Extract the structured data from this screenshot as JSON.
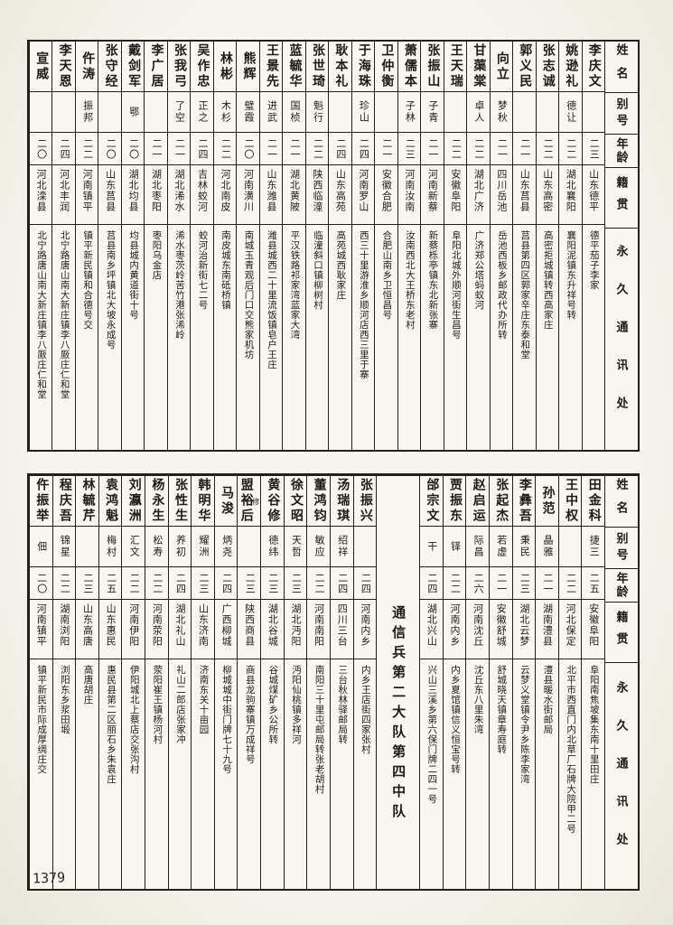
{
  "colors": {
    "paper": "#f8f6ef",
    "ink": "#1e1b18",
    "line": "#23201c"
  },
  "page": {
    "number": "1379"
  },
  "labels": {
    "name": "姓名",
    "alias": "别号",
    "age": "年龄",
    "native": "籍贯",
    "address": "永久通讯处"
  },
  "sections": {
    "top": {
      "persons": [
        {
          "name": "李庆文",
          "alias": "",
          "age": "二三",
          "native": "山东德平",
          "address": "德平茄子李家"
        },
        {
          "name": "姚逊礼",
          "alias": "德让",
          "age": "二二",
          "native": "湖北襄阳",
          "address": "襄阳泥镇东升祥号转"
        },
        {
          "name": "张志诚",
          "alias": "",
          "age": "二二",
          "native": "山东高密",
          "address": "高密拒城镇转西高家庄"
        },
        {
          "name": "郭义民",
          "alias": "",
          "age": "二一",
          "native": "山东莒县",
          "address": "莒县第四区郭家辛庄东泰和堂"
        },
        {
          "name": "向立",
          "alias": "梦秋",
          "age": "二一",
          "native": "四川岳池",
          "address": "岳池西板乡邮政代办所转"
        },
        {
          "name": "甘蕖棠",
          "alias": "卓人",
          "age": "二二",
          "native": "湖北广济",
          "address": "广济郑公塔蚂蚁河"
        },
        {
          "name": "王天瑞",
          "alias": "",
          "age": "二二",
          "native": "安徽阜阳",
          "address": "阜阳北城外顺河街生昌号"
        },
        {
          "name": "张振山",
          "alias": "子青",
          "age": "二一",
          "native": "河南新蔡",
          "address": "新蔡栎亭镇东北新张寨"
        },
        {
          "name": "萧儒本",
          "alias": "子林",
          "age": "二三",
          "native": "河南汝南",
          "address": "汝南西北大王桥东老村"
        },
        {
          "name": "卫仲衡",
          "alias": "",
          "age": "二一",
          "native": "安徽合肥",
          "address": "合肥山南乡卫恒昌号"
        },
        {
          "name": "于海珠",
          "alias": "珍山",
          "age": "二四",
          "native": "河南罗山",
          "address": "西三十里游淮乡顺河店西三里于寨"
        },
        {
          "name": "耿本礼",
          "alias": "",
          "age": "二四",
          "native": "山东高苑",
          "address": "高苑城西耿家庄"
        },
        {
          "name": "张世琦",
          "alias": "魁行",
          "age": "二二",
          "native": "陕西临潼",
          "address": "临潼斜口镇柳树村"
        },
        {
          "name": "蓝毓华",
          "alias": "国桢",
          "age": "二一",
          "native": "湖北黄陂",
          "address": "平汉铁路祁家湾蓝家大湾"
        },
        {
          "name": "王景先",
          "alias": "进武",
          "age": "二一",
          "native": "山东潍县",
          "address": "潍县城西二十里流饭镇皂户王庄"
        },
        {
          "name": "熊辉",
          "alias": "璧霞",
          "age": "二〇",
          "native": "河南潢川",
          "address": "南城玉青观后门口交熊家机坊"
        },
        {
          "name": "林彬",
          "alias": "木杉",
          "age": "二二",
          "native": "河北南皮",
          "address": "南皮城东南砥桥镇"
        },
        {
          "name": "吴作忠",
          "alias": "正之",
          "age": "二四",
          "native": "吉林蛟河",
          "address": "蛟河治新街七二号"
        },
        {
          "name": "张我弓",
          "alias": "了空",
          "age": "二一",
          "native": "湖北浠水",
          "address": "浠水枣茨岭苦竹港张浠岭"
        },
        {
          "name": "李广居",
          "alias": "",
          "age": "二一",
          "native": "湖北枣阳",
          "address": "枣阳乌金店"
        },
        {
          "name": "戴剑军",
          "alias": "鄂",
          "age": "二〇",
          "native": "湖北均县",
          "address": "均县城内黄道街十号"
        },
        {
          "name": "张守经",
          "alias": "",
          "age": "二〇",
          "native": "山东莒县",
          "address": "莒县南乡坪镇北大坡永成号"
        },
        {
          "name": "仵涛",
          "alias": "振邦",
          "age": "二二",
          "native": "河南镇平",
          "address": "镇平新民镇和合德号交"
        },
        {
          "name": "李天恩",
          "alias": "",
          "age": "二四",
          "native": "河北丰润",
          "address": "北宁路唐山南大新庄镇李八厫庄仁和堂"
        },
        {
          "name": "宣威",
          "alias": "",
          "age": "二〇",
          "native": "河北滦县",
          "address": "北宁路唐山南大新庄镇李八厫庄仁和堂"
        }
      ]
    },
    "bottom": {
      "unit_label": "通信兵第二大队第四中队",
      "persons_right": [
        {
          "name": "田金科",
          "alias": "捷三",
          "age": "二五",
          "native": "安徽阜阳",
          "address": "阜阳南焦坡集东南十里田庄"
        },
        {
          "name": "王中权",
          "alias": "",
          "age": "二二",
          "native": "河北保定",
          "address": "北平市西直门内北草厂石牌大院甲二号"
        },
        {
          "name": "孙范",
          "alias": "晶雅",
          "age": "二一",
          "native": "湖南澧县",
          "address": "澧县暖水街邮局"
        },
        {
          "name": "李彝吾",
          "alias": "秉民",
          "age": "二三",
          "native": "湖北云梦",
          "address": "云梦义堂镇令尹乡陈李家湾"
        },
        {
          "name": "张起杰",
          "alias": "若虚",
          "age": "二一",
          "native": "安徽舒城",
          "address": "舒城晓天镇章寿庭转"
        },
        {
          "name": "赵启运",
          "alias": "际昌",
          "age": "二六",
          "native": "河南沈丘",
          "address": "沈丘东八里朱湾"
        },
        {
          "name": "贾振东",
          "alias": "铎",
          "age": "二二",
          "native": "河南内乡",
          "address": "内乡夏馆镇信义恒宝号转"
        },
        {
          "name": "邰宗文",
          "alias": "干",
          "age": "二四",
          "native": "湖北兴山",
          "address": "兴山三溪乡第六保门牌二四一号"
        }
      ],
      "persons_left": [
        {
          "name": "张振兴",
          "alias": "",
          "age": "二四",
          "native": "河南内乡",
          "address": "内乡王店街四家张村"
        },
        {
          "name": "汤瑞琪",
          "alias": "绍祥",
          "age": "二四",
          "native": "四川三台",
          "address": "三台秋林驿邮局转"
        },
        {
          "name": "董鸿钧",
          "alias": "敏应",
          "age": "二二",
          "native": "河南南阳",
          "address": "南阳三十里屯邮局转张老胡村"
        },
        {
          "name": "徐文昭",
          "alias": "天哲",
          "age": "二三",
          "native": "湖北沔阳",
          "address": "沔阳仙桃镇多祥河"
        },
        {
          "name": "黄谷修",
          "alias": "德纬",
          "age": "二三",
          "native": "湖北谷城",
          "address": "谷城煤矿乡公所转"
        },
        {
          "name": "盟裕后",
          "name_note": "修",
          "alias": "",
          "age": "二三",
          "native": "陕西商县",
          "address": "商县龙驹寨镇万成祥号"
        },
        {
          "name": "马浚",
          "alias": "炳尧",
          "age": "二四",
          "native": "广西柳城",
          "address": "柳城城中街门牌七十九号"
        },
        {
          "name": "韩明华",
          "alias": "耀洲",
          "age": "二三",
          "native": "山东济南",
          "address": "济南东关十亩园"
        },
        {
          "name": "张性生",
          "alias": "养初",
          "age": "二四",
          "native": "湖北礼山",
          "address": "礼山二郎店张家冲"
        },
        {
          "name": "杨永生",
          "alias": "松寿",
          "age": "二二",
          "native": "河南荥阳",
          "address": "荥阳崔王镇杨河村"
        },
        {
          "name": "刘瀛洲",
          "alias": "汇文",
          "age": "二二",
          "native": "河南伊阳",
          "address": "伊阳城北上蔡店交张沟村"
        },
        {
          "name": "袁鸿魁",
          "alias": "梅村",
          "age": "二五",
          "native": "山东惠民",
          "address": "惠民县第二区丽石乡朱袁庄"
        },
        {
          "name": "林毓芹",
          "alias": "",
          "age": "二三",
          "native": "山东高唐",
          "address": "高唐胡庄"
        },
        {
          "name": "程庆吾",
          "alias": "锦星",
          "age": "二二",
          "native": "湖南浏阳",
          "address": "浏阳东乡浆田塅"
        },
        {
          "name": "仵振举",
          "alias": "佃",
          "age": "二〇",
          "native": "河南镇平",
          "address": "镇平新民市际成厚绸庄交"
        }
      ]
    }
  }
}
